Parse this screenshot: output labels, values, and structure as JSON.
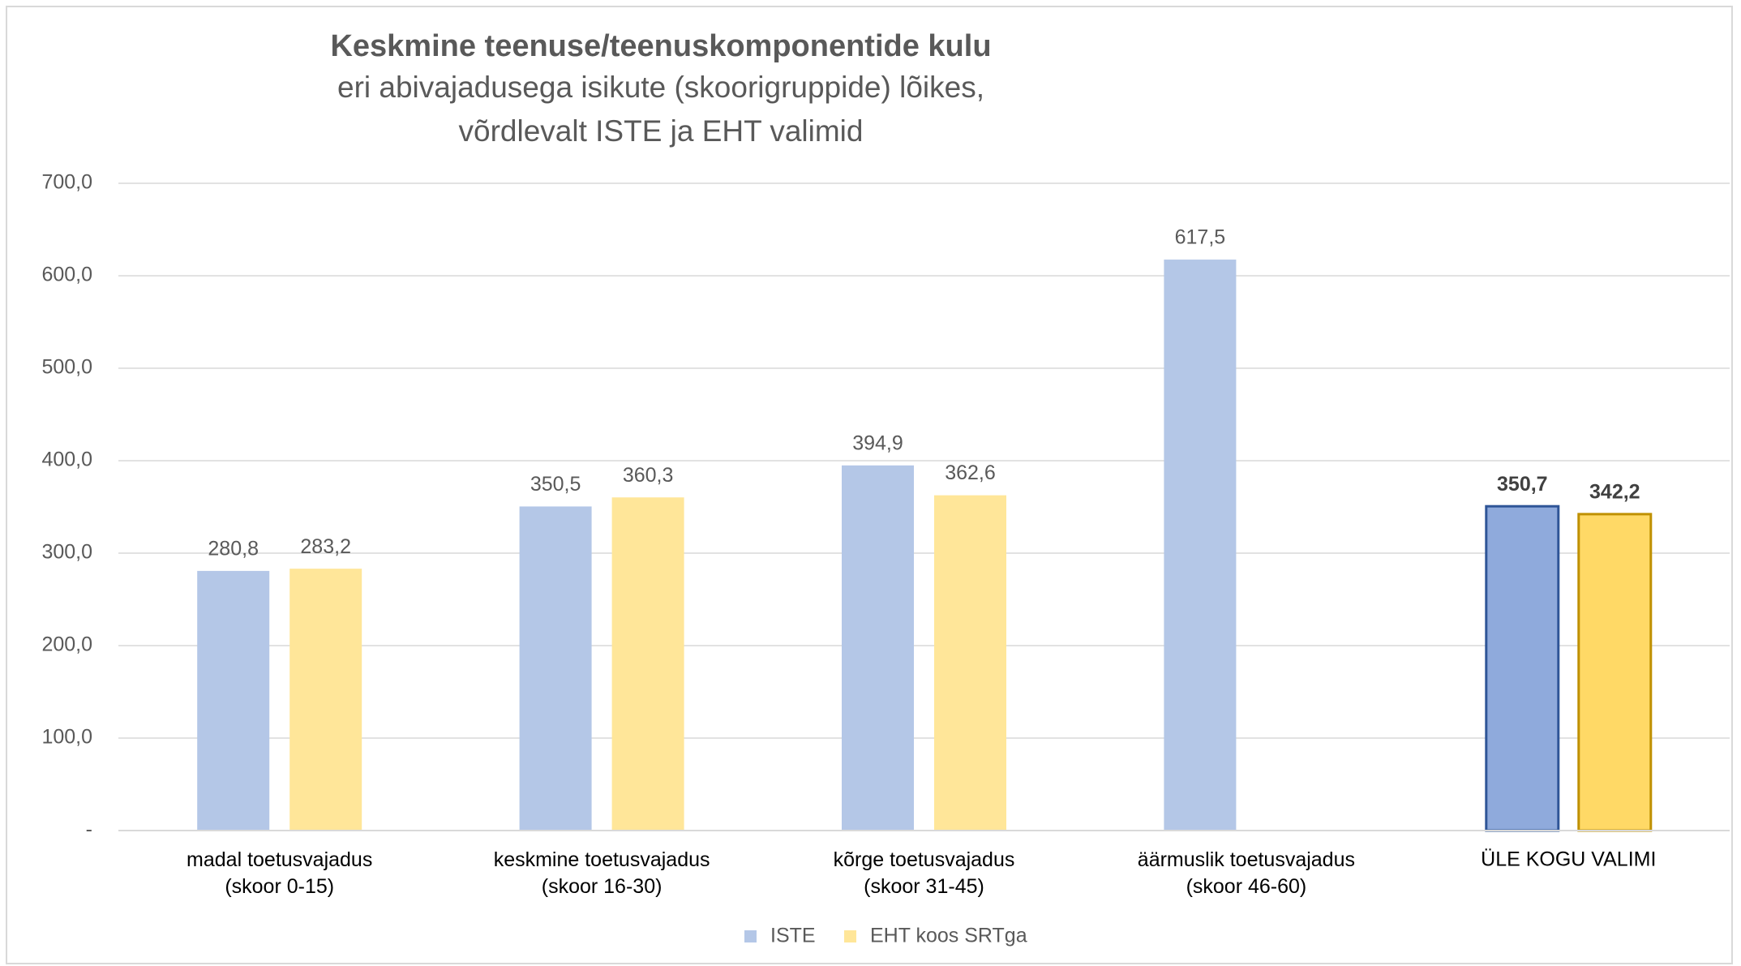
{
  "chart_data": {
    "type": "bar",
    "title": "Keskmine teenuse/teenuskomponentide kulu",
    "subtitle": "eri abivajadusega isikute (skoorigruppide) lõikes,\nvõrdlevalt ISTE ja EHT valimid",
    "categories": [
      "madal toetusvajadus\n(skoor  0-15)",
      "keskmine toetusvajadus\n(skoor 16-30)",
      "kõrge toetusvajadus\n(skoor 31-45)",
      "äärmuslik toetusvajadus\n(skoor 46-60)",
      "ÜLE KOGU VALIMI"
    ],
    "series": [
      {
        "name": "ISTE",
        "color": "#b4c7e7",
        "colors": [
          "#b4c7e7",
          "#b4c7e7",
          "#b4c7e7",
          "#b4c7e7",
          "#8faadc"
        ],
        "edge_colors": [
          null,
          null,
          null,
          null,
          "#2f5597"
        ],
        "values": [
          280.8,
          350.5,
          394.9,
          617.5,
          350.7
        ],
        "value_labels": [
          "280,8",
          "350,5",
          "394,9",
          "617,5",
          "350,7"
        ]
      },
      {
        "name": "EHT koos SRTga",
        "color": "#ffe699",
        "colors": [
          "#ffe699",
          "#ffe699",
          "#ffe699",
          "#ffe699",
          "#ffd966"
        ],
        "edge_colors": [
          null,
          null,
          null,
          null,
          "#bf9000"
        ],
        "values": [
          283.2,
          360.3,
          362.6,
          null,
          342.2
        ],
        "value_labels": [
          "283,2",
          "360,3",
          "362,6",
          null,
          "342,2"
        ]
      }
    ],
    "ylim": [
      0,
      700
    ],
    "yticks": [
      {
        "value": 0,
        "label": "-"
      },
      {
        "value": 100,
        "label": "100,0"
      },
      {
        "value": 200,
        "label": "200,0"
      },
      {
        "value": 300,
        "label": "300,0"
      },
      {
        "value": 400,
        "label": "400,0"
      },
      {
        "value": 500,
        "label": "500,0"
      },
      {
        "value": 600,
        "label": "600,0"
      },
      {
        "value": 700,
        "label": "700,0"
      }
    ],
    "grid": true,
    "legend": "bottom"
  }
}
